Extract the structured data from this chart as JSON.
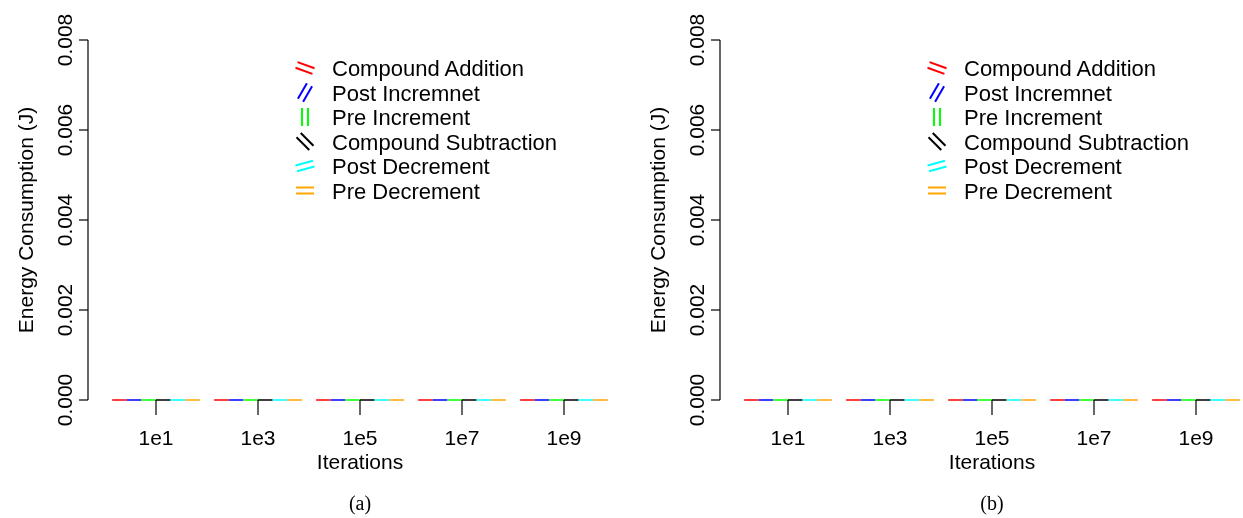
{
  "chart_data": [
    {
      "type": "bar",
      "xlabel": "Iterations",
      "ylabel": "Energy Consumption (J)",
      "categories": [
        "1e1",
        "1e3",
        "1e5",
        "1e7",
        "1e9"
      ],
      "ylim": [
        0,
        0.008
      ],
      "yticks": [
        {
          "value": 0,
          "label": "0.000"
        },
        {
          "value": 0.002,
          "label": "0.002"
        },
        {
          "value": 0.004,
          "label": "0.004"
        },
        {
          "value": 0.006,
          "label": "0.006"
        },
        {
          "value": 0.008,
          "label": "0.008"
        }
      ],
      "grid": false,
      "legend": "top right",
      "annotations": [
        "(a)"
      ],
      "series": [
        {
          "name": "Compound Addition",
          "color": "#ff0000",
          "values": [
            0,
            0,
            0,
            0,
            0
          ]
        },
        {
          "name": "Post Incremnet",
          "color": "#0000ff",
          "values": [
            0,
            0,
            0,
            0,
            0
          ]
        },
        {
          "name": "Pre Increment",
          "color": "#00ff00",
          "values": [
            0,
            0,
            0,
            0,
            0
          ]
        },
        {
          "name": "Compound Subtraction",
          "color": "#000000",
          "values": [
            0,
            0,
            0,
            0,
            0
          ]
        },
        {
          "name": "Post Decrement",
          "color": "#00ffff",
          "values": [
            0,
            0,
            0,
            0,
            0
          ]
        },
        {
          "name": "Pre Decrement",
          "color": "#ffa500",
          "values": [
            0,
            0,
            0,
            0,
            0
          ]
        }
      ]
    },
    {
      "type": "bar",
      "xlabel": "Iterations",
      "ylabel": "Energy Consumption (J)",
      "categories": [
        "1e1",
        "1e3",
        "1e5",
        "1e7",
        "1e9"
      ],
      "ylim": [
        0,
        0.008
      ],
      "yticks": [
        {
          "value": 0,
          "label": "0.000"
        },
        {
          "value": 0.002,
          "label": "0.002"
        },
        {
          "value": 0.004,
          "label": "0.004"
        },
        {
          "value": 0.006,
          "label": "0.006"
        },
        {
          "value": 0.008,
          "label": "0.008"
        }
      ],
      "grid": false,
      "legend": "top right",
      "annotations": [
        "(b)"
      ],
      "series": [
        {
          "name": "Compound Addition",
          "color": "#ff0000",
          "values": [
            0,
            0,
            0,
            0,
            0
          ]
        },
        {
          "name": "Post Incremnet",
          "color": "#0000ff",
          "values": [
            0,
            0,
            0,
            0,
            0
          ]
        },
        {
          "name": "Pre Increment",
          "color": "#00ff00",
          "values": [
            0,
            0,
            0,
            0,
            0
          ]
        },
        {
          "name": "Compound Subtraction",
          "color": "#000000",
          "values": [
            0,
            0,
            0,
            0,
            0
          ]
        },
        {
          "name": "Post Decrement",
          "color": "#00ffff",
          "values": [
            0,
            0,
            0,
            0,
            0
          ]
        },
        {
          "name": "Pre Decrement",
          "color": "#ffa500",
          "values": [
            0,
            0,
            0,
            0,
            0
          ]
        }
      ]
    }
  ]
}
